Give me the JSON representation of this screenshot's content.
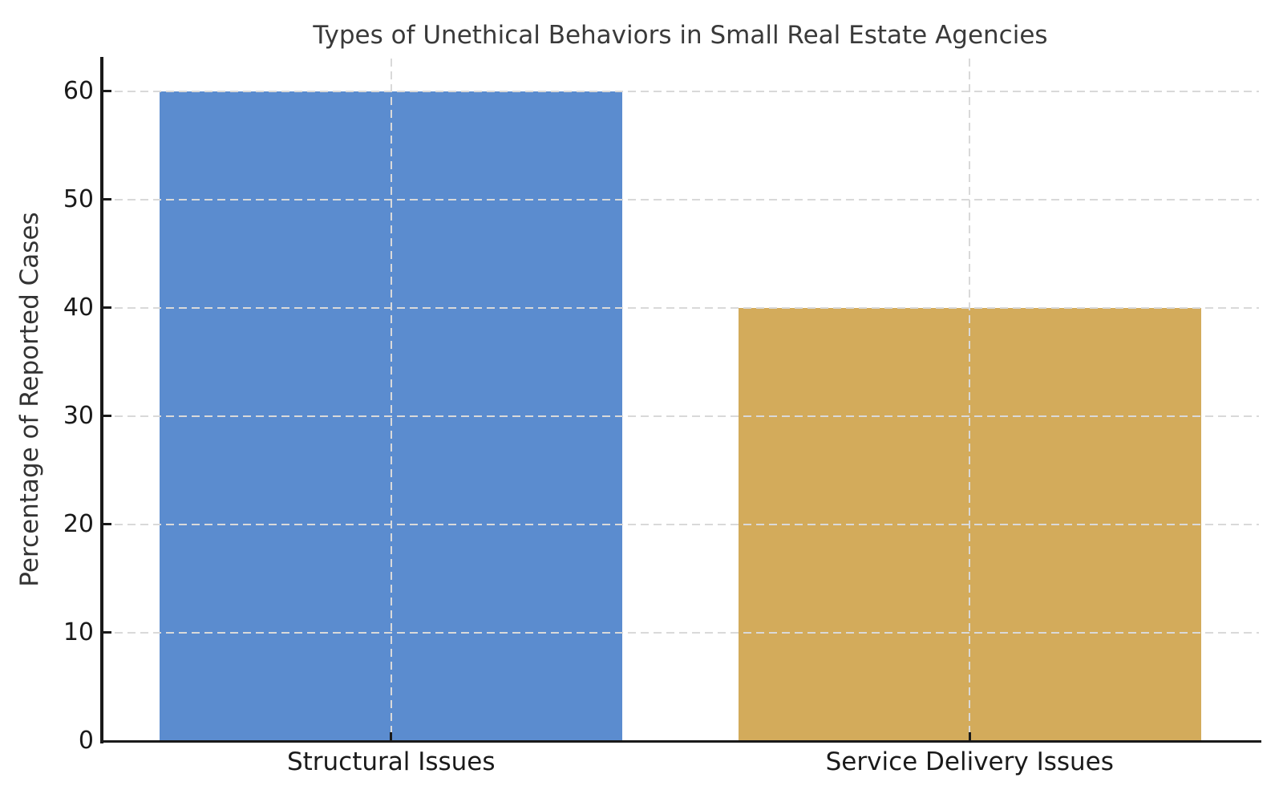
{
  "chart_data": {
    "type": "bar",
    "title": "Types of Unethical Behaviors in Small Real Estate Agencies",
    "ylabel": "Percentage of Reported Cases",
    "xlabel": "",
    "categories": [
      "Structural Issues",
      "Service Delivery Issues"
    ],
    "values": [
      60,
      40
    ],
    "bar_colors": [
      "#5b8ccf",
      "#d3ab5b"
    ],
    "yticks": [
      0,
      10,
      20,
      30,
      40,
      50,
      60
    ],
    "ylim": [
      0,
      63
    ],
    "bar_width_fraction": 0.8,
    "grid": "dashed light-gray horizontal lines at each y tick and vertical lines at each bar center, drawn above bars",
    "legend_position": "none",
    "style_colors": {
      "background": "#ffffff",
      "spine": "#1a1a1a",
      "tick_mark": "#1a1a1a",
      "gridline": "#d9d9d9",
      "title_text": "#3a3a3a",
      "axis_label_text": "#333333",
      "tick_label_text": "#1a1a1a"
    }
  }
}
